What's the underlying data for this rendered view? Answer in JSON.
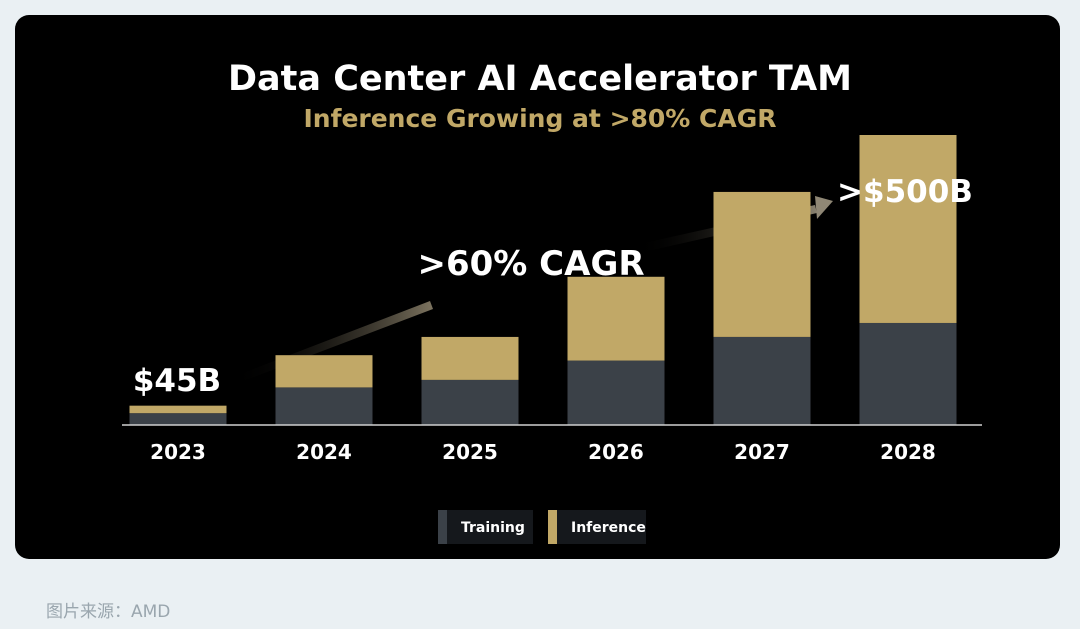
{
  "chart_data": {
    "type": "bar",
    "stacked": true,
    "title": "Data Center AI Accelerator TAM",
    "subtitle": "Inference Growing at >80% CAGR",
    "categories": [
      "2023",
      "2024",
      "2025",
      "2026",
      "2027",
      "2028"
    ],
    "series": [
      {
        "name": "Training",
        "color": "#3b4148",
        "values": [
          11,
          35,
          42,
          60,
          82,
          95
        ]
      },
      {
        "name": "Inference",
        "color": "#c1a867",
        "values": [
          7,
          30,
          40,
          78,
          135,
          175
        ]
      }
    ],
    "ylim": [
      0,
      270
    ],
    "annotations": {
      "start_value": "$45B",
      "end_value": ">$500B",
      "growth": ">60% CAGR"
    }
  },
  "caption": "图片来源：AMD"
}
